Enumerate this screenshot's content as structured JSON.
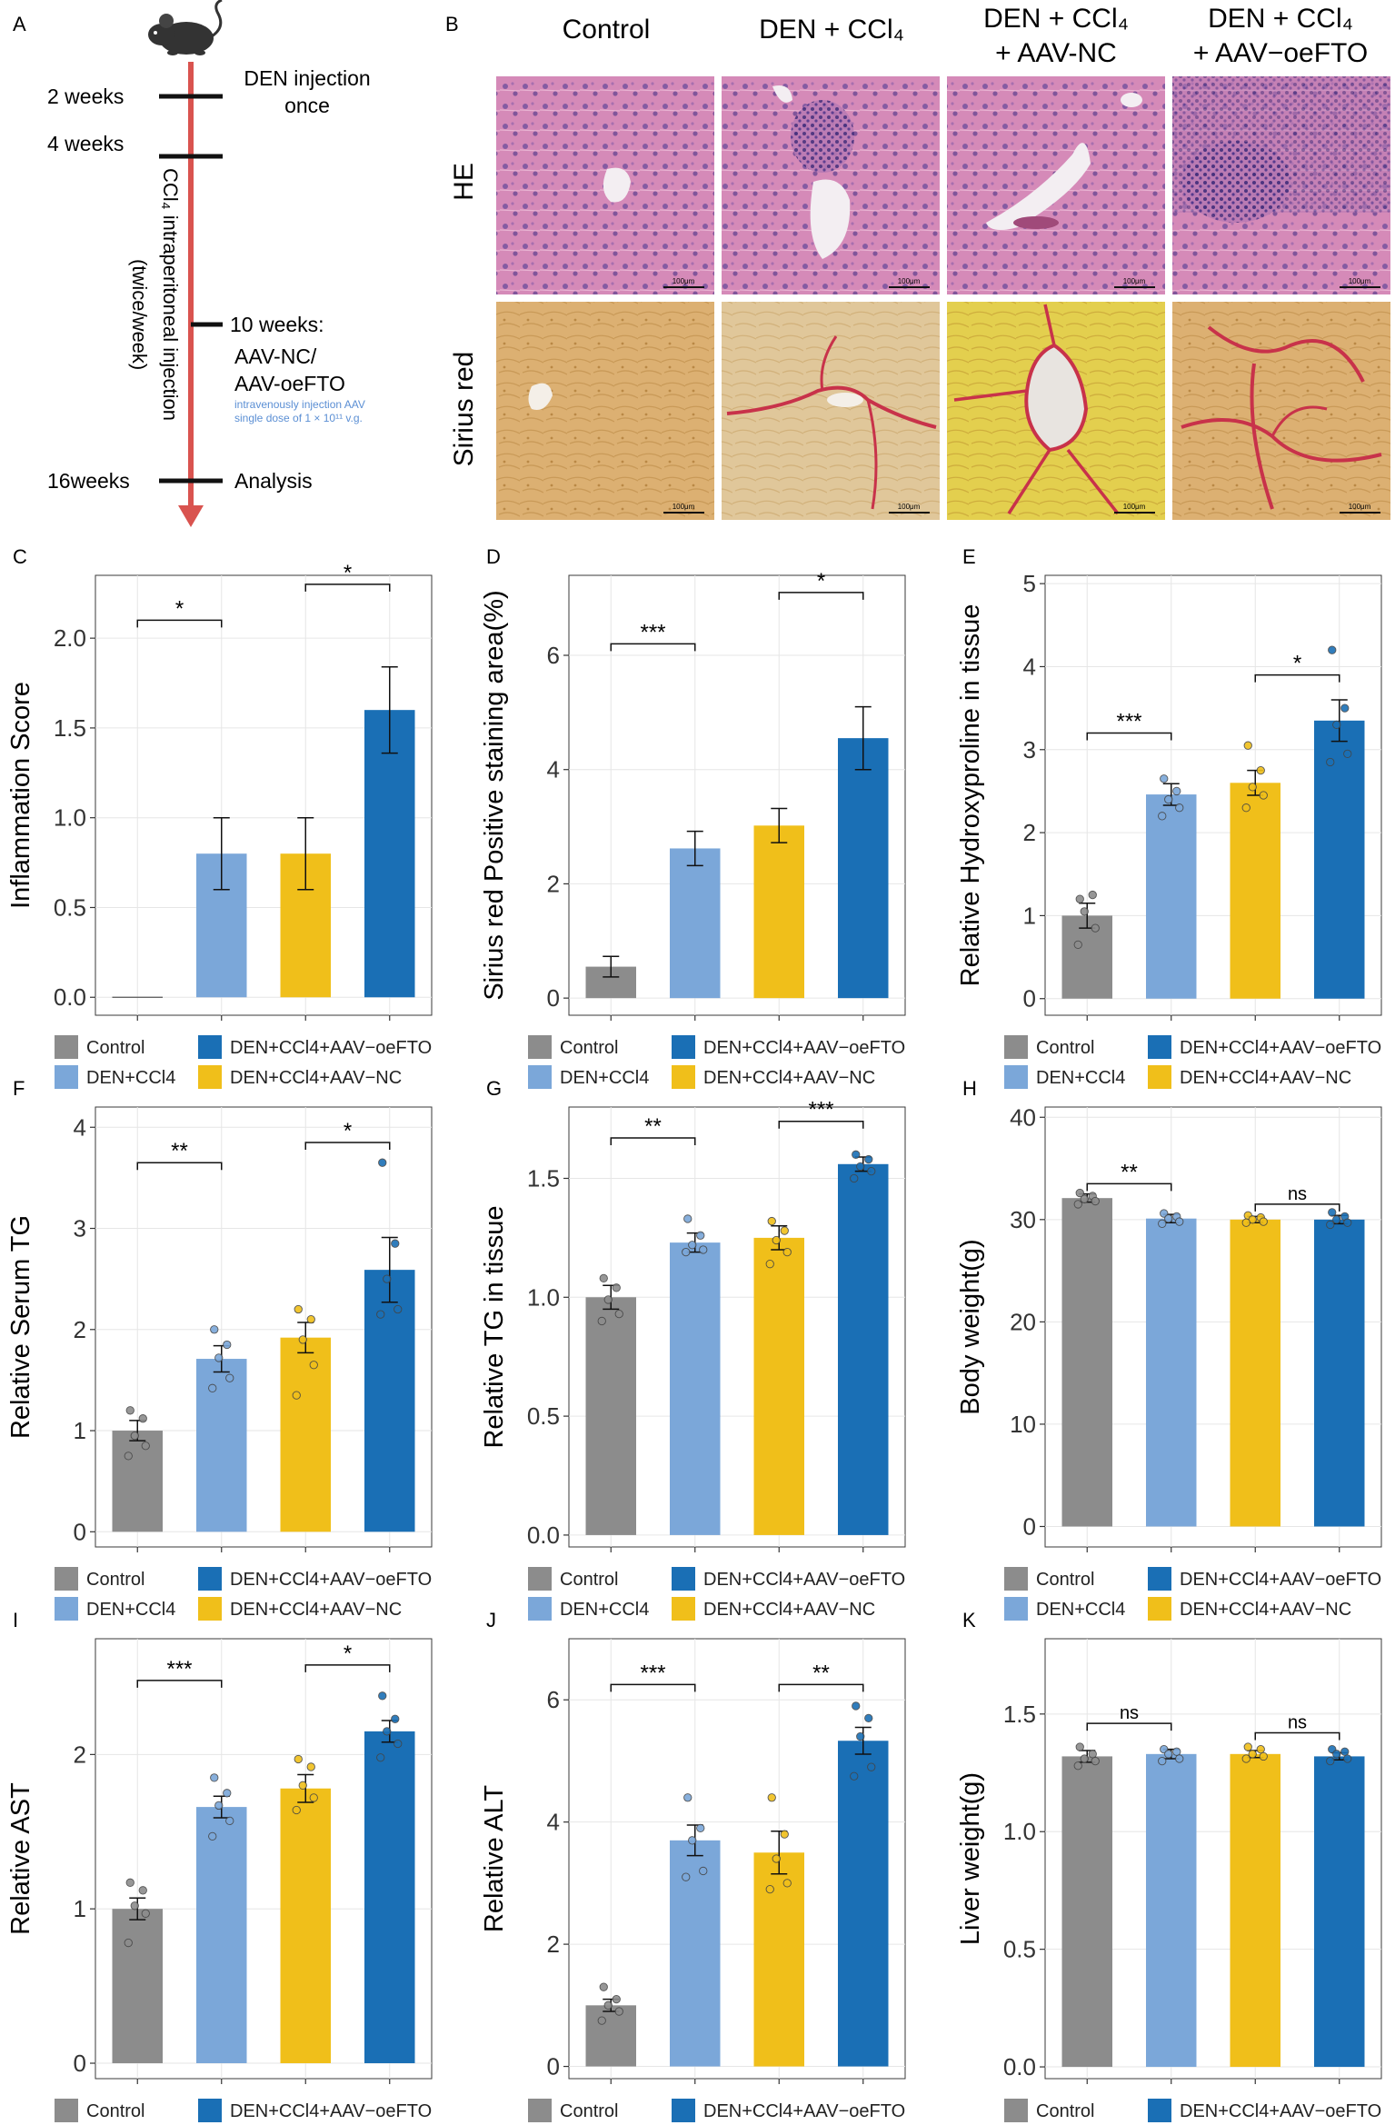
{
  "colors": {
    "control": "#8c8c8c",
    "den_ccl4": "#7ba7d9",
    "aav_nc": "#f0bf1a",
    "aav_oefto": "#1a6fb5",
    "timeline": "#d9534f",
    "he": "#cf7fb0",
    "sirius": "#dcb072",
    "collagen": "#c8324a"
  },
  "panel_a": {
    "letter": "A",
    "events": [
      {
        "time": "2 weeks",
        "label_line1": "DEN injection",
        "label_line2": "once"
      },
      {
        "time": "4 weeks"
      },
      {
        "time": "10 weeks:",
        "label_line1": "AAV-NC/",
        "label_line2": "AAV-oeFTO",
        "note_line1": "intravenously injection AAV",
        "note_line2": "single dose of 1 × 10¹¹ v.g."
      },
      {
        "time": "16weeks",
        "label_line1": "Analysis"
      }
    ],
    "vertical_label_line1": "CCl₄ intraperitoneal injection",
    "vertical_label_line2": "(twice/week)"
  },
  "panel_b": {
    "letter": "B",
    "columns": [
      {
        "line1": "Control",
        "line2": ""
      },
      {
        "line1": "DEN + CCl₄",
        "line2": ""
      },
      {
        "line1": "DEN + CCl₄",
        "line2": "+ AAV-NC"
      },
      {
        "line1": "DEN + CCl₄",
        "line2": "+ AAV−oeFTO"
      }
    ],
    "rows": [
      "HE",
      "Sirius red"
    ],
    "scale_label": "100μm"
  },
  "legend": {
    "control": "Control",
    "den_ccl4": "DEN+CCl4",
    "aav_oefto": "DEN+CCl4+AAV−oeFTO",
    "aav_nc": "DEN+CCl4+AAV−NC"
  },
  "chart_data": [
    {
      "letter": "C",
      "type": "bar",
      "ylabel": "Inflammation Score",
      "ylim": [
        -0.1,
        2.35
      ],
      "yticks": [
        "0.0",
        "0.5",
        "1.0",
        "1.5",
        "2.0"
      ],
      "categories": [
        "Control",
        "DEN+CCl4",
        "DEN+CCl4+AAV−NC",
        "DEN+CCl4+AAV−oeFTO"
      ],
      "values": [
        0,
        0.8,
        0.8,
        1.6
      ],
      "errors": [
        0,
        0.2,
        0.2,
        0.24
      ],
      "points": [
        [],
        [],
        [],
        []
      ],
      "significance": [
        {
          "pair": [
            0,
            1
          ],
          "label": "*",
          "y": 2.1
        },
        {
          "pair": [
            2,
            3
          ],
          "label": "*",
          "y": 2.3
        }
      ]
    },
    {
      "letter": "D",
      "type": "bar",
      "ylabel": "Sirius red Positive staining area(%)",
      "ylim": [
        -0.3,
        7.4
      ],
      "yticks": [
        "0",
        "2",
        "4",
        "6"
      ],
      "categories": [
        "Control",
        "DEN+CCl4",
        "DEN+CCl4+AAV−NC",
        "DEN+CCl4+AAV−oeFTO"
      ],
      "values": [
        0.55,
        2.62,
        3.02,
        4.55
      ],
      "errors": [
        0.18,
        0.3,
        0.3,
        0.55
      ],
      "points": [
        [],
        [],
        [],
        []
      ],
      "significance": [
        {
          "pair": [
            0,
            1
          ],
          "label": "***",
          "y": 6.2
        },
        {
          "pair": [
            2,
            3
          ],
          "label": "*",
          "y": 7.1
        }
      ]
    },
    {
      "letter": "E",
      "type": "bar",
      "ylabel": "Relative Hydroxyproline in tissue",
      "ylim": [
        -0.2,
        5.1
      ],
      "yticks": [
        "0",
        "1",
        "2",
        "3",
        "4",
        "5"
      ],
      "categories": [
        "Control",
        "DEN+CCl4",
        "DEN+CCl4+AAV−NC",
        "DEN+CCl4+AAV−oeFTO"
      ],
      "values": [
        1.0,
        2.46,
        2.6,
        3.35
      ],
      "errors": [
        0.15,
        0.13,
        0.15,
        0.25
      ],
      "points": [
        [
          1.2,
          1.25,
          1.05,
          0.85,
          0.65
        ],
        [
          2.65,
          2.5,
          2.4,
          2.3,
          2.2
        ],
        [
          3.05,
          2.75,
          2.55,
          2.45,
          2.3
        ],
        [
          4.2,
          3.5,
          3.3,
          2.95,
          2.85
        ]
      ],
      "significance": [
        {
          "pair": [
            0,
            1
          ],
          "label": "***",
          "y": 3.2
        },
        {
          "pair": [
            2,
            3
          ],
          "label": "*",
          "y": 3.9
        }
      ]
    },
    {
      "letter": "F",
      "type": "bar",
      "ylabel": "Relative Serum TG",
      "ylim": [
        -0.15,
        4.2
      ],
      "yticks": [
        "0",
        "1",
        "2",
        "3",
        "4"
      ],
      "categories": [
        "Control",
        "DEN+CCl4",
        "DEN+CCl4+AAV−NC",
        "DEN+CCl4+AAV−oeFTO"
      ],
      "values": [
        1.0,
        1.71,
        1.92,
        2.59
      ],
      "errors": [
        0.1,
        0.13,
        0.15,
        0.32
      ],
      "points": [
        [
          1.2,
          1.12,
          0.95,
          0.85,
          0.75
        ],
        [
          2.0,
          1.85,
          1.72,
          1.52,
          1.42
        ],
        [
          2.2,
          2.1,
          1.9,
          1.65,
          1.35
        ],
        [
          3.65,
          2.85,
          2.5,
          2.2,
          2.15
        ]
      ],
      "significance": [
        {
          "pair": [
            0,
            1
          ],
          "label": "**",
          "y": 3.65
        },
        {
          "pair": [
            2,
            3
          ],
          "label": "*",
          "y": 3.85
        }
      ]
    },
    {
      "letter": "G",
      "type": "bar",
      "ylabel": "Relative TG in tissue",
      "ylim": [
        -0.05,
        1.8
      ],
      "yticks": [
        "0.0",
        "0.5",
        "1.0",
        "1.5"
      ],
      "categories": [
        "Control",
        "DEN+CCl4",
        "DEN+CCl4+AAV−NC",
        "DEN+CCl4+AAV−oeFTO"
      ],
      "values": [
        1.0,
        1.23,
        1.25,
        1.56
      ],
      "errors": [
        0.05,
        0.04,
        0.05,
        0.03
      ],
      "points": [
        [
          1.08,
          1.04,
          0.99,
          0.93,
          0.9
        ],
        [
          1.33,
          1.26,
          1.22,
          1.2,
          1.19
        ],
        [
          1.32,
          1.28,
          1.24,
          1.19,
          1.14
        ],
        [
          1.6,
          1.58,
          1.55,
          1.53,
          1.5
        ]
      ],
      "significance": [
        {
          "pair": [
            0,
            1
          ],
          "label": "**",
          "y": 1.67
        },
        {
          "pair": [
            2,
            3
          ],
          "label": "***",
          "y": 1.74
        }
      ]
    },
    {
      "letter": "H",
      "type": "bar",
      "ylabel": "Body weight(g)",
      "ylim": [
        -2,
        41
      ],
      "yticks": [
        "0",
        "10",
        "20",
        "30",
        "40"
      ],
      "categories": [
        "Control",
        "DEN+CCl4",
        "DEN+CCl4+AAV−NC",
        "DEN+CCl4+AAV−oeFTO"
      ],
      "values": [
        32.1,
        30.1,
        30.0,
        30.0
      ],
      "errors": [
        0.4,
        0.4,
        0.3,
        0.4
      ],
      "points": [
        [
          32.6,
          32.3,
          32.0,
          31.8,
          31.5
        ],
        [
          30.6,
          30.3,
          30.1,
          29.8,
          29.6
        ],
        [
          30.4,
          30.2,
          30.0,
          29.8,
          29.7
        ],
        [
          30.7,
          30.3,
          30.0,
          29.7,
          29.5
        ]
      ],
      "significance": [
        {
          "pair": [
            0,
            1
          ],
          "label": "**",
          "y": 33.5
        },
        {
          "pair": [
            2,
            3
          ],
          "label": "ns",
          "y": 31.5
        }
      ]
    },
    {
      "letter": "I",
      "type": "bar",
      "ylabel": "Relative AST",
      "ylim": [
        -0.1,
        2.75
      ],
      "yticks": [
        "0",
        "1",
        "2"
      ],
      "categories": [
        "Control",
        "DEN+CCl4",
        "DEN+CCl4+AAV−NC",
        "DEN+CCl4+AAV−oeFTO"
      ],
      "values": [
        1.0,
        1.66,
        1.78,
        2.15
      ],
      "errors": [
        0.07,
        0.07,
        0.09,
        0.07
      ],
      "points": [
        [
          1.17,
          1.12,
          1.02,
          0.97,
          0.78
        ],
        [
          1.85,
          1.75,
          1.67,
          1.57,
          1.47
        ],
        [
          1.97,
          1.92,
          1.8,
          1.72,
          1.64
        ],
        [
          2.38,
          2.23,
          2.15,
          2.07,
          1.98
        ]
      ],
      "significance": [
        {
          "pair": [
            0,
            1
          ],
          "label": "***",
          "y": 2.48
        },
        {
          "pair": [
            2,
            3
          ],
          "label": "*",
          "y": 2.58
        }
      ]
    },
    {
      "letter": "J",
      "type": "bar",
      "ylabel": "Relative ALT",
      "ylim": [
        -0.2,
        7.0
      ],
      "yticks": [
        "0",
        "2",
        "4",
        "6"
      ],
      "categories": [
        "Control",
        "DEN+CCl4",
        "DEN+CCl4+AAV−NC",
        "DEN+CCl4+AAV−oeFTO"
      ],
      "values": [
        1.0,
        3.7,
        3.5,
        5.33
      ],
      "errors": [
        0.1,
        0.25,
        0.35,
        0.22
      ],
      "points": [
        [
          1.3,
          1.1,
          1.0,
          0.9,
          0.75
        ],
        [
          4.4,
          3.9,
          3.7,
          3.2,
          3.1
        ],
        [
          4.4,
          3.8,
          3.4,
          3.0,
          2.9
        ],
        [
          5.9,
          5.7,
          5.4,
          4.9,
          4.75
        ]
      ],
      "significance": [
        {
          "pair": [
            0,
            1
          ],
          "label": "***",
          "y": 6.25
        },
        {
          "pair": [
            2,
            3
          ],
          "label": "**",
          "y": 6.25
        }
      ]
    },
    {
      "letter": "K",
      "type": "bar",
      "ylabel": "Liver weight(g)",
      "ylim": [
        -0.05,
        1.82
      ],
      "yticks": [
        "0.0",
        "0.5",
        "1.0",
        "1.5"
      ],
      "categories": [
        "Control",
        "DEN+CCl4",
        "DEN+CCl4+AAV−NC",
        "DEN+CCl4+AAV−oeFTO"
      ],
      "values": [
        1.32,
        1.33,
        1.33,
        1.32
      ],
      "errors": [
        0.025,
        0.02,
        0.015,
        0.015
      ],
      "points": [
        [
          1.36,
          1.33,
          1.31,
          1.3,
          1.28
        ],
        [
          1.35,
          1.34,
          1.33,
          1.31,
          1.3
        ],
        [
          1.36,
          1.35,
          1.33,
          1.32,
          1.31
        ],
        [
          1.35,
          1.34,
          1.33,
          1.31,
          1.3
        ]
      ],
      "significance": [
        {
          "pair": [
            0,
            1
          ],
          "label": "ns",
          "y": 1.46
        },
        {
          "pair": [
            2,
            3
          ],
          "label": "ns",
          "y": 1.42
        }
      ]
    }
  ]
}
